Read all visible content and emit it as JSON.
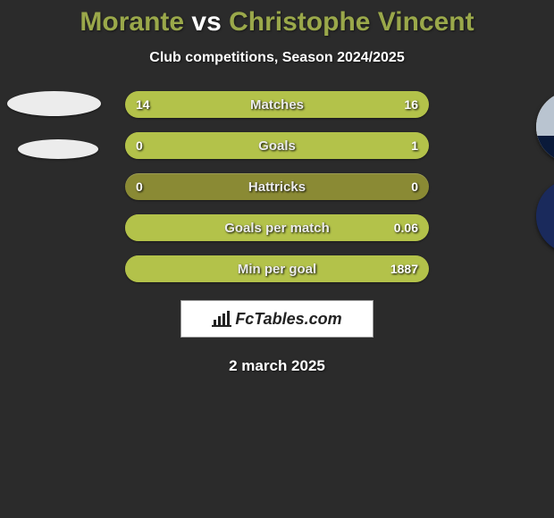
{
  "header": {
    "title_prefix": "Morante",
    "title_vs": " vs ",
    "title_suffix": "Christophe Vincent",
    "title_color_a": "#9aa84a",
    "title_color_vs": "#ffffff",
    "title_color_b": "#9aa84a",
    "subtitle": "Club competitions, Season 2024/2025"
  },
  "chart": {
    "type": "stat-comparison-bars",
    "bar_bg": "#8a8a34",
    "fill_color_left": "#b3c24a",
    "fill_color_right": "#b3c24a",
    "text_color": "#ececec",
    "rows": [
      {
        "label": "Matches",
        "left": "14",
        "right": "16",
        "left_pct": 47,
        "right_pct": 53
      },
      {
        "label": "Goals",
        "left": "0",
        "right": "1",
        "left_pct": 0,
        "right_pct": 100
      },
      {
        "label": "Hattricks",
        "left": "0",
        "right": "0",
        "left_pct": 0,
        "right_pct": 0
      },
      {
        "label": "Goals per match",
        "left": "",
        "right": "0.06",
        "left_pct": 0,
        "right_pct": 100
      },
      {
        "label": "Min per goal",
        "left": "",
        "right": "1887",
        "left_pct": 0,
        "right_pct": 100
      }
    ]
  },
  "player_right": {
    "name": "Christophe Vincent",
    "avatar_bg": "#cdbfa8"
  },
  "club_right": {
    "badge_bg": "#1a2a5c",
    "badge_accent1": "#e56a1e",
    "badge_accent2": "#ffffff"
  },
  "brand": {
    "text": "FcTables.com",
    "bg": "#ffffff",
    "icon_color": "#222222"
  },
  "footer": {
    "date": "2 march 2025"
  },
  "colors": {
    "page_bg": "#2b2b2b"
  }
}
